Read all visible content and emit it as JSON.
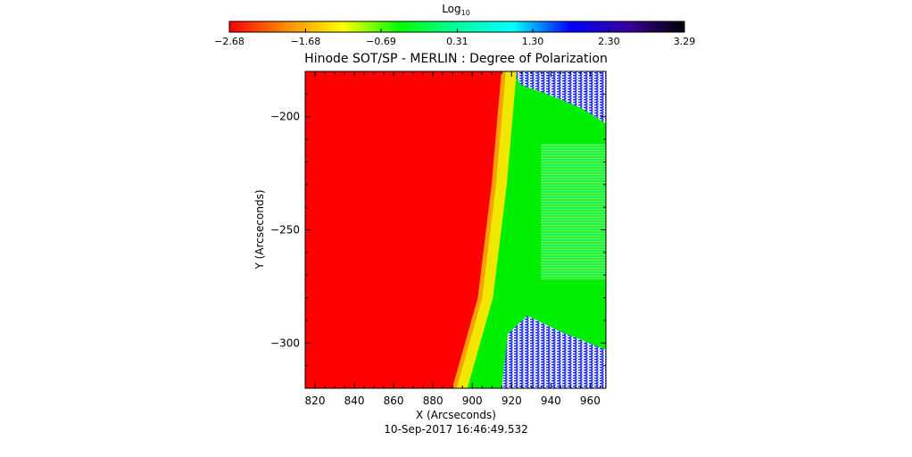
{
  "chart_data": {
    "type": "heatmap",
    "title": "Hinode SOT/SP - MERLIN : Degree of Polarization",
    "xlabel": "X (Arcseconds)",
    "ylabel": "Y (Arcseconds)",
    "timestamp": "10-Sep-2017 16:46:49.532",
    "xlim": [
      815,
      968
    ],
    "ylim": [
      -320,
      -180
    ],
    "x_ticks": [
      820,
      840,
      860,
      880,
      900,
      920,
      940,
      960
    ],
    "y_ticks": [
      -300,
      -250,
      -200
    ],
    "x_tick_labels": [
      "820",
      "840",
      "860",
      "880",
      "900",
      "920",
      "940",
      "960"
    ],
    "y_tick_labels": [
      "−300",
      "−250",
      "−200"
    ],
    "colorbar": {
      "label": "Log",
      "label_subscript": "10",
      "range": [
        -2.68,
        3.29
      ],
      "ticks": [
        -2.68,
        -1.68,
        -0.69,
        0.31,
        1.3,
        2.3,
        3.29
      ],
      "tick_labels": [
        "−2.68",
        "−1.68",
        "−0.69",
        "0.31",
        "1.30",
        "2.30",
        "3.29"
      ],
      "colormap": [
        "#ff0000",
        "#ff8c00",
        "#ffff00",
        "#00ff00",
        "#00ffa0",
        "#00ffff",
        "#0000ff",
        "#3a00a0",
        "#000000"
      ]
    },
    "region_colors": {
      "disk": "#ff0000",
      "limb_edge": "#ffa800",
      "limb_band": "#f0f000",
      "off_limb": "#00ee00",
      "off_limb_mid": "#22f060",
      "noise": "#1a28ff",
      "missing": "#ffffff"
    },
    "limb_path_data": [
      [
        918,
        -180
      ],
      [
        913,
        -230
      ],
      [
        906,
        -280
      ],
      [
        893,
        -320
      ]
    ]
  }
}
